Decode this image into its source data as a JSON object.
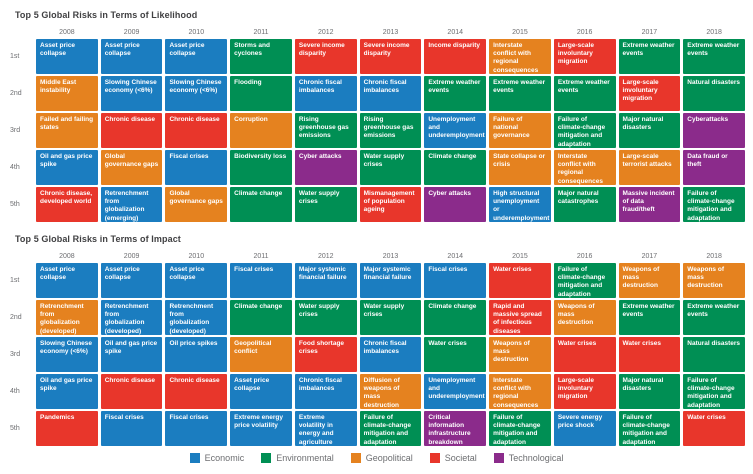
{
  "palette": {
    "economic": "#1b7dc0",
    "environmental": "#008f54",
    "geopolitical": "#e5821f",
    "societal": "#e8362b",
    "technological": "#8b2b8b"
  },
  "chart_data": {
    "type": "table",
    "years": [
      "2008",
      "2009",
      "2010",
      "2011",
      "2012",
      "2013",
      "2014",
      "2015",
      "2016",
      "2017",
      "2018"
    ],
    "row_labels": [
      "1st",
      "2nd",
      "3rd",
      "4th",
      "5th"
    ],
    "legend": [
      {
        "label": "Economic",
        "category": "economic"
      },
      {
        "label": "Environmental",
        "category": "environmental"
      },
      {
        "label": "Geopolitical",
        "category": "geopolitical"
      },
      {
        "label": "Societal",
        "category": "societal"
      },
      {
        "label": "Technological",
        "category": "technological"
      }
    ],
    "tables": [
      {
        "title": "Top 5 Global Risks in Terms of Likelihood",
        "columns": [
          {
            "year": "2008",
            "cells": [
              {
                "text": "Asset price collapse",
                "category": "economic"
              },
              {
                "text": "Middle East instability",
                "category": "geopolitical"
              },
              {
                "text": "Failed and failing states",
                "category": "geopolitical"
              },
              {
                "text": "Oil and gas price spike",
                "category": "economic"
              },
              {
                "text": "Chronic disease, developed world",
                "category": "societal"
              }
            ]
          },
          {
            "year": "2009",
            "cells": [
              {
                "text": "Asset price collapse",
                "category": "economic"
              },
              {
                "text": "Slowing Chinese economy (<6%)",
                "category": "economic"
              },
              {
                "text": "Chronic disease",
                "category": "societal"
              },
              {
                "text": "Global governance gaps",
                "category": "geopolitical"
              },
              {
                "text": "Retrenchment from globalization (emerging)",
                "category": "economic"
              }
            ]
          },
          {
            "year": "2010",
            "cells": [
              {
                "text": "Asset price collapse",
                "category": "economic"
              },
              {
                "text": "Slowing Chinese economy (<6%)",
                "category": "economic"
              },
              {
                "text": "Chronic disease",
                "category": "societal"
              },
              {
                "text": "Fiscal crises",
                "category": "economic"
              },
              {
                "text": "Global governance gaps",
                "category": "geopolitical"
              }
            ]
          },
          {
            "year": "2011",
            "cells": [
              {
                "text": "Storms and cyclones",
                "category": "environmental"
              },
              {
                "text": "Flooding",
                "category": "environmental"
              },
              {
                "text": "Corruption",
                "category": "geopolitical"
              },
              {
                "text": "Biodiversity loss",
                "category": "environmental"
              },
              {
                "text": "Climate change",
                "category": "environmental"
              }
            ]
          },
          {
            "year": "2012",
            "cells": [
              {
                "text": "Severe income disparity",
                "category": "societal"
              },
              {
                "text": "Chronic fiscal imbalances",
                "category": "economic"
              },
              {
                "text": "Rising greenhouse gas emissions",
                "category": "environmental"
              },
              {
                "text": "Cyber attacks",
                "category": "technological"
              },
              {
                "text": "Water supply crises",
                "category": "environmental"
              }
            ]
          },
          {
            "year": "2013",
            "cells": [
              {
                "text": "Severe income disparity",
                "category": "societal"
              },
              {
                "text": "Chronic fiscal imbalances",
                "category": "economic"
              },
              {
                "text": "Rising greenhouse gas emissions",
                "category": "environmental"
              },
              {
                "text": "Water supply crises",
                "category": "environmental"
              },
              {
                "text": "Mismanagement of population ageing",
                "category": "societal"
              }
            ]
          },
          {
            "year": "2014",
            "cells": [
              {
                "text": "Income disparity",
                "category": "societal"
              },
              {
                "text": "Extreme weather events",
                "category": "environmental"
              },
              {
                "text": "Unemployment and underemployment",
                "category": "economic"
              },
              {
                "text": "Climate change",
                "category": "environmental"
              },
              {
                "text": "Cyber attacks",
                "category": "technological"
              }
            ]
          },
          {
            "year": "2015",
            "cells": [
              {
                "text": "Interstate conflict with regional consequences",
                "category": "geopolitical"
              },
              {
                "text": "Extreme weather events",
                "category": "environmental"
              },
              {
                "text": "Failure of national governance",
                "category": "geopolitical"
              },
              {
                "text": "State collapse or crisis",
                "category": "geopolitical"
              },
              {
                "text": "High structural unemployment or underemployment",
                "category": "economic"
              }
            ]
          },
          {
            "year": "2016",
            "cells": [
              {
                "text": "Large-scale involuntary migration",
                "category": "societal"
              },
              {
                "text": "Extreme weather events",
                "category": "environmental"
              },
              {
                "text": "Failure of climate-change mitigation and adaptation",
                "category": "environmental"
              },
              {
                "text": "Interstate conflict with regional consequences",
                "category": "geopolitical"
              },
              {
                "text": "Major natural catastrophes",
                "category": "environmental"
              }
            ]
          },
          {
            "year": "2017",
            "cells": [
              {
                "text": "Extreme weather events",
                "category": "environmental"
              },
              {
                "text": "Large-scale involuntary migration",
                "category": "societal"
              },
              {
                "text": "Major natural disasters",
                "category": "environmental"
              },
              {
                "text": "Large-scale terrorist attacks",
                "category": "geopolitical"
              },
              {
                "text": "Massive incident of data fraud/theft",
                "category": "technological"
              }
            ]
          },
          {
            "year": "2018",
            "cells": [
              {
                "text": "Extreme weather events",
                "category": "environmental"
              },
              {
                "text": "Natural disasters",
                "category": "environmental"
              },
              {
                "text": "Cyberattacks",
                "category": "technological"
              },
              {
                "text": "Data fraud or theft",
                "category": "technological"
              },
              {
                "text": "Failure of climate-change mitigation and adaptation",
                "category": "environmental"
              }
            ]
          }
        ]
      },
      {
        "title": "Top 5 Global Risks in Terms of Impact",
        "columns": [
          {
            "year": "2008",
            "cells": [
              {
                "text": "Asset price collapse",
                "category": "economic"
              },
              {
                "text": "Retrenchment from globalization (developed)",
                "category": "geopolitical"
              },
              {
                "text": "Slowing Chinese economy (<6%)",
                "category": "economic"
              },
              {
                "text": "Oil and gas price spike",
                "category": "economic"
              },
              {
                "text": "Pandemics",
                "category": "societal"
              }
            ]
          },
          {
            "year": "2009",
            "cells": [
              {
                "text": "Asset price collapse",
                "category": "economic"
              },
              {
                "text": "Retrenchment from globalization (developed)",
                "category": "economic"
              },
              {
                "text": "Oil and gas price spike",
                "category": "economic"
              },
              {
                "text": "Chronic disease",
                "category": "societal"
              },
              {
                "text": "Fiscal crises",
                "category": "economic"
              }
            ]
          },
          {
            "year": "2010",
            "cells": [
              {
                "text": "Asset price collapse",
                "category": "economic"
              },
              {
                "text": "Retrenchment from globalization (developed)",
                "category": "economic"
              },
              {
                "text": "Oil price spikes",
                "category": "economic"
              },
              {
                "text": "Chronic disease",
                "category": "societal"
              },
              {
                "text": "Fiscal crises",
                "category": "economic"
              }
            ]
          },
          {
            "year": "2011",
            "cells": [
              {
                "text": "Fiscal crises",
                "category": "economic"
              },
              {
                "text": "Climate change",
                "category": "environmental"
              },
              {
                "text": "Geopolitical conflict",
                "category": "geopolitical"
              },
              {
                "text": "Asset price collapse",
                "category": "economic"
              },
              {
                "text": "Extreme energy price volatility",
                "category": "economic"
              }
            ]
          },
          {
            "year": "2012",
            "cells": [
              {
                "text": "Major systemic financial failure",
                "category": "economic"
              },
              {
                "text": "Water supply crises",
                "category": "environmental"
              },
              {
                "text": "Food shortage crises",
                "category": "societal"
              },
              {
                "text": "Chronic fiscal imbalances",
                "category": "economic"
              },
              {
                "text": "Extreme volatility in energy and agriculture prices",
                "category": "economic"
              }
            ]
          },
          {
            "year": "2013",
            "cells": [
              {
                "text": "Major systemic financial failure",
                "category": "economic"
              },
              {
                "text": "Water supply crises",
                "category": "environmental"
              },
              {
                "text": "Chronic fiscal imbalances",
                "category": "economic"
              },
              {
                "text": "Diffusion of weapons of mass destruction",
                "category": "geopolitical"
              },
              {
                "text": "Failure of climate-change mitigation and adaptation",
                "category": "environmental"
              }
            ]
          },
          {
            "year": "2014",
            "cells": [
              {
                "text": "Fiscal crises",
                "category": "economic"
              },
              {
                "text": "Climate change",
                "category": "environmental"
              },
              {
                "text": "Water crises",
                "category": "environmental"
              },
              {
                "text": "Unemployment and underemployment",
                "category": "economic"
              },
              {
                "text": "Critical information infrastructure breakdown",
                "category": "technological"
              }
            ]
          },
          {
            "year": "2015",
            "cells": [
              {
                "text": "Water crises",
                "category": "societal"
              },
              {
                "text": "Rapid and massive spread of infectious diseases",
                "category": "societal"
              },
              {
                "text": "Weapons of mass destruction",
                "category": "geopolitical"
              },
              {
                "text": "Interstate conflict with regional consequences",
                "category": "geopolitical"
              },
              {
                "text": "Failure of climate-change mitigation and adaptation",
                "category": "environmental"
              }
            ]
          },
          {
            "year": "2016",
            "cells": [
              {
                "text": "Failure of climate-change mitigation and adaptation",
                "category": "environmental"
              },
              {
                "text": "Weapons of mass destruction",
                "category": "geopolitical"
              },
              {
                "text": "Water crises",
                "category": "societal"
              },
              {
                "text": "Large-scale involuntary migration",
                "category": "societal"
              },
              {
                "text": "Severe energy price shock",
                "category": "economic"
              }
            ]
          },
          {
            "year": "2017",
            "cells": [
              {
                "text": "Weapons of mass destruction",
                "category": "geopolitical"
              },
              {
                "text": "Extreme weather events",
                "category": "environmental"
              },
              {
                "text": "Water crises",
                "category": "societal"
              },
              {
                "text": "Major natural disasters",
                "category": "environmental"
              },
              {
                "text": "Failure of climate-change mitigation and adaptation",
                "category": "environmental"
              }
            ]
          },
          {
            "year": "2018",
            "cells": [
              {
                "text": "Weapons of mass destruction",
                "category": "geopolitical"
              },
              {
                "text": "Extreme weather events",
                "category": "environmental"
              },
              {
                "text": "Natural disasters",
                "category": "environmental"
              },
              {
                "text": "Failure of climate-change mitigation and adaptation",
                "category": "environmental"
              },
              {
                "text": "Water crises",
                "category": "societal"
              }
            ]
          }
        ]
      }
    ]
  }
}
